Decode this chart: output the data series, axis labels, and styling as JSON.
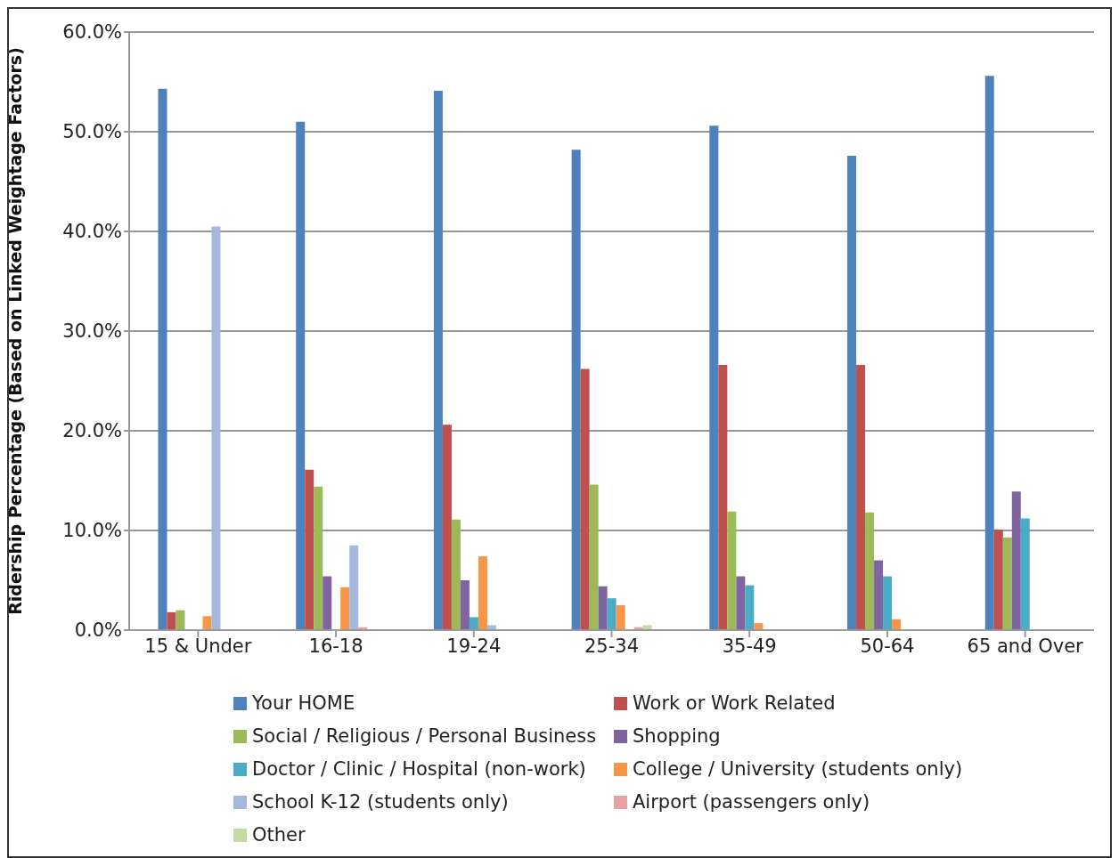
{
  "chart_data": {
    "type": "bar",
    "ylabel": "Ridership Percentage (Based on Linked Weightage Factors)",
    "categories": [
      "15 & Under",
      "16-18",
      "19-24",
      "25-34",
      "35-49",
      "50-64",
      "65 and Over"
    ],
    "series": [
      {
        "name": "Your HOME",
        "color": "#4f81bd",
        "values": [
          54.3,
          51.0,
          54.1,
          48.2,
          50.6,
          47.6,
          55.6
        ]
      },
      {
        "name": "Work or Work Related",
        "color": "#c0504d",
        "values": [
          1.8,
          16.1,
          20.6,
          26.2,
          26.6,
          26.6,
          10.1
        ]
      },
      {
        "name": "Social / Religious / Personal Business",
        "color": "#9bbb59",
        "values": [
          2.0,
          14.4,
          11.1,
          14.6,
          11.9,
          11.8,
          9.3
        ]
      },
      {
        "name": "Shopping",
        "color": "#8064a2",
        "values": [
          0,
          5.4,
          5.0,
          4.4,
          5.4,
          7.0,
          13.9
        ]
      },
      {
        "name": "Doctor / Clinic / Hospital (non-work)",
        "color": "#4bacc6",
        "values": [
          0,
          0,
          1.3,
          3.2,
          4.5,
          5.4,
          11.2
        ]
      },
      {
        "name": "College / University (students only)",
        "color": "#f79646",
        "values": [
          1.4,
          4.3,
          7.4,
          2.5,
          0.7,
          1.1,
          0
        ]
      },
      {
        "name": "School K-12 (students only)",
        "color": "#a5b9dc",
        "values": [
          40.5,
          8.5,
          0.5,
          0,
          0,
          0,
          0
        ]
      },
      {
        "name": "Airport (passengers only)",
        "color": "#e6a3a1",
        "values": [
          0,
          0.3,
          0,
          0.3,
          0,
          0,
          0
        ]
      },
      {
        "name": "Other",
        "color": "#c4dba2",
        "values": [
          0,
          0,
          0,
          0.5,
          0,
          0,
          0
        ]
      }
    ],
    "ylim": [
      0,
      60
    ],
    "yticks": [
      {
        "value": 0,
        "label": "0.0%"
      },
      {
        "value": 10,
        "label": "10.0%"
      },
      {
        "value": 20,
        "label": "20.0%"
      },
      {
        "value": 30,
        "label": "30.0%"
      },
      {
        "value": 40,
        "label": "40.0%"
      },
      {
        "value": 50,
        "label": "50.0%"
      },
      {
        "value": 60,
        "label": "60.0%"
      }
    ],
    "grid": "y",
    "legend": "bottom"
  }
}
